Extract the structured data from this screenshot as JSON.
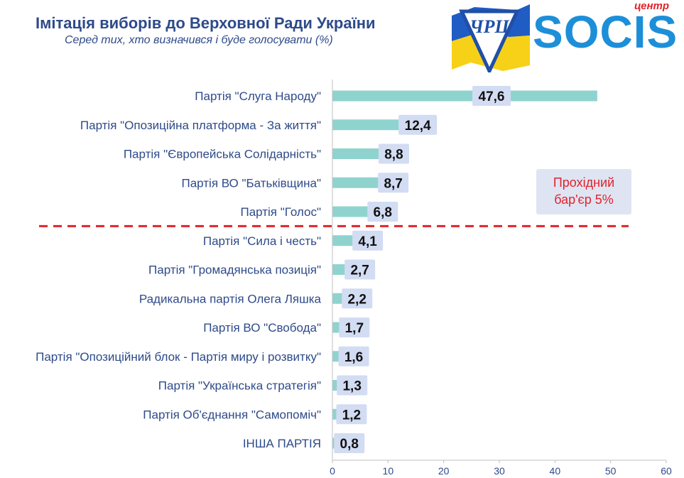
{
  "header": {
    "title": "Імітація виборів до Верховної Ради України",
    "subtitle": "Серед тих, хто визначився і буде голосувати (%)"
  },
  "logo": {
    "emblem_text": "ЧРЦ",
    "brand_top": "центр",
    "brand": "SOCIS"
  },
  "annotation": {
    "line1": "Прохідний",
    "line2": "бар'єр 5%"
  },
  "colors": {
    "bar": "#8fd3cf",
    "label_bg": "#d2dcf2",
    "title": "#2e4a8a",
    "threshold": "#e0242b"
  },
  "chart_data": {
    "type": "bar",
    "orientation": "horizontal",
    "title": "Імітація виборів до Верховної Ради України",
    "subtitle": "Серед тих, хто визначився і буде голосувати (%)",
    "xlabel": "",
    "ylabel": "",
    "xlim": [
      0,
      60
    ],
    "xticks": [
      0,
      10,
      20,
      30,
      40,
      50,
      60
    ],
    "threshold": 5,
    "threshold_label": "Прохідний бар'єр 5%",
    "categories": [
      "Партія \"Слуга Народу\"",
      "Партія \"Опозиційна платформа - За життя\"",
      "Партія \"Європейська Солідарність\"",
      "Партія ВО \"Батьківщина\"",
      "Партія \"Голос\"",
      "Партія \"Сила і честь\"",
      "Партія \"Громадянська позиція\"",
      "Радикальна партія Олега Ляшка",
      "Партія ВО \"Свобода\"",
      "Партія \"Опозиційний блок - Партія миру і розвитку\"",
      "Партія \"Українська стратегія\"",
      "Партія Об'єднання \"Самопоміч\"",
      "ІНША ПАРТІЯ"
    ],
    "values": [
      47.6,
      12.4,
      8.8,
      8.7,
      6.8,
      4.1,
      2.7,
      2.2,
      1.7,
      1.6,
      1.3,
      1.2,
      0.8
    ],
    "value_labels": [
      "47,6",
      "12,4",
      "8,8",
      "8,7",
      "6,8",
      "4,1",
      "2,7",
      "2,2",
      "1,7",
      "1,6",
      "1,3",
      "1,2",
      "0,8"
    ]
  }
}
